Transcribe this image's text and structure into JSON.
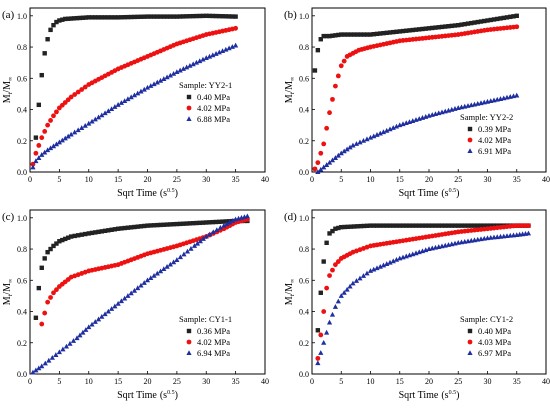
{
  "figure": {
    "title": ""
  },
  "chart_data": [
    {
      "type": "scatter",
      "panel_label": "(a)",
      "xlabel": "Sqrt Time",
      "xunit": "(s",
      "xunit_exp": "0.5",
      "xunit_close": ")",
      "ylabel_main": "M",
      "ylabel_sub1": "t",
      "ylabel_sep": "/M",
      "ylabel_sub2": "∞",
      "xlim": [
        0,
        40
      ],
      "ylim": [
        0,
        1.05
      ],
      "xticks": [
        0,
        5,
        10,
        15,
        20,
        25,
        30,
        35,
        40
      ],
      "yticks": [
        0.0,
        0.2,
        0.4,
        0.6,
        0.8,
        1.0
      ],
      "xtick_labels": [
        "0",
        "5",
        "10",
        "15",
        "20",
        "25",
        "30",
        "35",
        "40"
      ],
      "ytick_labels": [
        "0.0",
        "0.2",
        "0.4",
        "0.6",
        "0.8",
        "1.0"
      ],
      "sample_label": "Sample: YY2-1",
      "legend_position": "center-right",
      "series": [
        {
          "name": "0.40 MPa",
          "color": "#222222",
          "marker": "square",
          "x": [
            1.0,
            1.5,
            2.0,
            2.5,
            3.0,
            3.5,
            4.0,
            4.5,
            5.0,
            6.0,
            8.0,
            10.0,
            15.0,
            20.0,
            25.0,
            30.0,
            35.0
          ],
          "y": [
            0.22,
            0.43,
            0.62,
            0.76,
            0.85,
            0.91,
            0.94,
            0.96,
            0.97,
            0.98,
            0.985,
            0.99,
            0.99,
            0.995,
            0.995,
            1.0,
            0.995
          ]
        },
        {
          "name": "4.02 MPa",
          "color": "#ee1111",
          "marker": "circle",
          "x": [
            0.5,
            1.0,
            2.0,
            3.0,
            4.0,
            5.0,
            7.0,
            10.0,
            15.0,
            20.0,
            25.0,
            30.0,
            35.0
          ],
          "y": [
            0.05,
            0.12,
            0.22,
            0.3,
            0.36,
            0.41,
            0.48,
            0.56,
            0.66,
            0.74,
            0.82,
            0.88,
            0.92
          ]
        },
        {
          "name": "6.88 MPa",
          "color": "#1f2fa0",
          "marker": "triangle",
          "x": [
            0.5,
            1.0,
            2.0,
            3.0,
            5.0,
            7.0,
            10.0,
            15.0,
            20.0,
            25.0,
            30.0,
            35.0
          ],
          "y": [
            0.03,
            0.07,
            0.11,
            0.14,
            0.19,
            0.24,
            0.31,
            0.43,
            0.54,
            0.64,
            0.73,
            0.81
          ]
        }
      ]
    },
    {
      "type": "scatter",
      "panel_label": "(b)",
      "xlabel": "Sqrt Time",
      "xunit": "(s",
      "xunit_exp": "0.5",
      "xunit_close": ")",
      "ylabel_main": "M",
      "ylabel_sub1": "t",
      "ylabel_sep": "/M",
      "ylabel_sub2": "∞",
      "xlim": [
        0,
        40
      ],
      "ylim": [
        0,
        1.05
      ],
      "xticks": [
        0,
        5,
        10,
        15,
        20,
        25,
        30,
        35,
        40
      ],
      "yticks": [
        0.0,
        0.2,
        0.4,
        0.6,
        0.8,
        1.0
      ],
      "xtick_labels": [
        "0",
        "5",
        "10",
        "15",
        "20",
        "25",
        "30",
        "35",
        "40"
      ],
      "ytick_labels": [
        "0.0",
        "0.2",
        "0.4",
        "0.6",
        "0.8",
        "1.0"
      ],
      "sample_label": "Sample: YY2-2",
      "legend_position": "lower-right",
      "series": [
        {
          "name": "0.39 MPa",
          "color": "#222222",
          "marker": "square",
          "x": [
            0.5,
            1.0,
            1.5,
            2.0,
            3.0,
            5.0,
            10.0,
            15.0,
            20.0,
            25.0,
            30.0,
            35.0
          ],
          "y": [
            0.65,
            0.78,
            0.85,
            0.87,
            0.87,
            0.88,
            0.88,
            0.9,
            0.92,
            0.94,
            0.97,
            1.0
          ]
        },
        {
          "name": "4.02 MPa",
          "color": "#ee1111",
          "marker": "circle",
          "x": [
            0.5,
            1.0,
            2.0,
            3.0,
            4.0,
            5.0,
            6.0,
            8.0,
            10.0,
            15.0,
            20.0,
            25.0,
            30.0,
            35.0
          ],
          "y": [
            0.02,
            0.06,
            0.18,
            0.38,
            0.55,
            0.68,
            0.74,
            0.78,
            0.8,
            0.84,
            0.86,
            0.88,
            0.91,
            0.93
          ]
        },
        {
          "name": "6.91 MPa",
          "color": "#1f2fa0",
          "marker": "triangle",
          "x": [
            1.0,
            2.0,
            3.0,
            5.0,
            7.0,
            10.0,
            15.0,
            20.0,
            25.0,
            30.0,
            35.0
          ],
          "y": [
            0.0,
            0.03,
            0.06,
            0.12,
            0.17,
            0.22,
            0.3,
            0.36,
            0.41,
            0.45,
            0.49
          ]
        }
      ]
    },
    {
      "type": "scatter",
      "panel_label": "(c)",
      "xlabel": "Sqrt Time",
      "xunit": "(s",
      "xunit_exp": "0.5",
      "xunit_close": ")",
      "ylabel_main": "M",
      "ylabel_sub1": "t",
      "ylabel_sep": "/M",
      "ylabel_sub2": "∞",
      "xlim": [
        0,
        40
      ],
      "ylim": [
        0,
        1.05
      ],
      "xticks": [
        0,
        5,
        10,
        15,
        20,
        25,
        30,
        35,
        40
      ],
      "yticks": [
        0.0,
        0.2,
        0.4,
        0.6,
        0.8,
        1.0
      ],
      "xtick_labels": [
        "0",
        "5",
        "10",
        "15",
        "20",
        "25",
        "30",
        "35",
        "40"
      ],
      "ytick_labels": [
        "0.0",
        "0.2",
        "0.4",
        "0.6",
        "0.8",
        "1.0"
      ],
      "sample_label": "Sample: CY1-1",
      "legend_position": "lower-right",
      "series": [
        {
          "name": "0.36 MPa",
          "color": "#222222",
          "marker": "square",
          "x": [
            1.0,
            1.5,
            2.0,
            2.5,
            3.0,
            4.0,
            5.0,
            7.0,
            10.0,
            15.0,
            20.0,
            25.0,
            30.0,
            35.0,
            37.0
          ],
          "y": [
            0.36,
            0.55,
            0.68,
            0.74,
            0.78,
            0.82,
            0.85,
            0.88,
            0.9,
            0.93,
            0.95,
            0.96,
            0.97,
            0.98,
            0.98
          ]
        },
        {
          "name": "4.02 MPa",
          "color": "#ee1111",
          "marker": "circle",
          "x": [
            2.0,
            3.0,
            4.0,
            5.0,
            7.0,
            10.0,
            15.0,
            20.0,
            25.0,
            30.0,
            33.0,
            35.0,
            37.0
          ],
          "y": [
            0.32,
            0.46,
            0.52,
            0.56,
            0.62,
            0.66,
            0.7,
            0.77,
            0.82,
            0.88,
            0.93,
            0.97,
            0.99
          ]
        },
        {
          "name": "6.94 MPa",
          "color": "#1f2fa0",
          "marker": "triangle",
          "x": [
            0.5,
            2.0,
            5.0,
            8.0,
            10.0,
            15.0,
            20.0,
            25.0,
            28.0,
            30.0,
            33.0,
            35.0,
            37.0
          ],
          "y": [
            0.01,
            0.05,
            0.14,
            0.23,
            0.3,
            0.45,
            0.6,
            0.73,
            0.82,
            0.88,
            0.95,
            0.99,
            1.01
          ]
        }
      ]
    },
    {
      "type": "scatter",
      "panel_label": "(d)",
      "xlabel": "Sqrt Time",
      "xunit": "(s",
      "xunit_exp": "0.5",
      "xunit_close": ")",
      "ylabel_main": "M",
      "ylabel_sub1": "t",
      "ylabel_sep": "/M",
      "ylabel_sub2": "∞",
      "xlim": [
        0,
        40
      ],
      "ylim": [
        0,
        1.05
      ],
      "xticks": [
        0,
        5,
        10,
        15,
        20,
        25,
        30,
        35,
        40
      ],
      "yticks": [
        0.0,
        0.2,
        0.4,
        0.6,
        0.8,
        1.0
      ],
      "xtick_labels": [
        "0",
        "5",
        "10",
        "15",
        "20",
        "25",
        "30",
        "35",
        "40"
      ],
      "ytick_labels": [
        "0.0",
        "0.2",
        "0.4",
        "0.6",
        "0.8",
        "1.0"
      ],
      "sample_label": "Sample: CY1-2",
      "legend_position": "lower-right",
      "series": [
        {
          "name": "0.40 MPa",
          "color": "#222222",
          "marker": "square",
          "x": [
            1.0,
            1.5,
            2.0,
            2.5,
            3.0,
            4.0,
            5.0,
            10.0,
            15.0,
            20.0,
            25.0,
            30.0,
            35.0,
            37.0
          ],
          "y": [
            0.28,
            0.52,
            0.72,
            0.84,
            0.9,
            0.93,
            0.94,
            0.95,
            0.95,
            0.95,
            0.95,
            0.95,
            0.95,
            0.95
          ]
        },
        {
          "name": "4.03 MPa",
          "color": "#ee1111",
          "marker": "circle",
          "x": [
            1.0,
            1.5,
            2.0,
            2.5,
            3.0,
            4.0,
            5.0,
            7.0,
            10.0,
            15.0,
            20.0,
            25.0,
            30.0,
            35.0,
            37.0
          ],
          "y": [
            0.1,
            0.25,
            0.4,
            0.55,
            0.63,
            0.7,
            0.74,
            0.78,
            0.82,
            0.85,
            0.88,
            0.91,
            0.93,
            0.95,
            0.95
          ]
        },
        {
          "name": "6.97 MPa",
          "color": "#1f2fa0",
          "marker": "triangle",
          "x": [
            1.0,
            2.0,
            3.0,
            4.0,
            5.0,
            7.0,
            10.0,
            15.0,
            20.0,
            25.0,
            30.0,
            35.0,
            37.0
          ],
          "y": [
            0.07,
            0.2,
            0.33,
            0.43,
            0.5,
            0.58,
            0.66,
            0.74,
            0.8,
            0.84,
            0.87,
            0.89,
            0.9
          ]
        }
      ]
    }
  ]
}
